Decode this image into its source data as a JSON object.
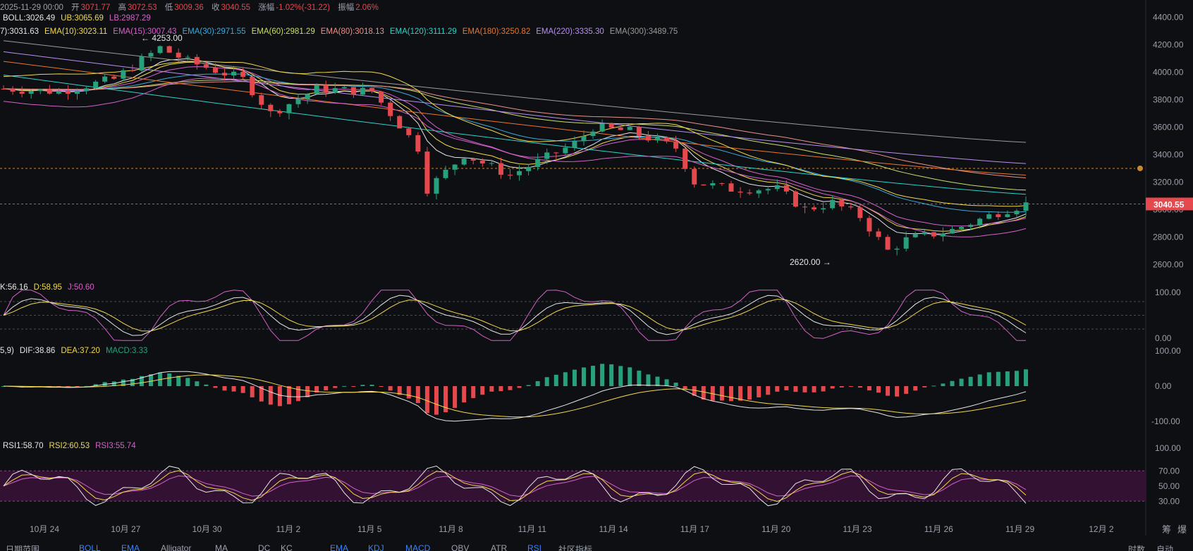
{
  "header": {
    "date": "2025-11-29 00:00",
    "open_label": "开",
    "open": "3071.77",
    "high_label": "高",
    "high": "3072.53",
    "low_label": "低",
    "low": "3009.36",
    "close_label": "收",
    "close": "3040.55",
    "change_label": "涨幅",
    "change": "-1.02%(-31.22)",
    "amp_label": "振幅",
    "amp": "2.06%"
  },
  "boll_legend": [
    {
      "text": "BOLL:3026.49",
      "color": "#e6e6e6"
    },
    {
      "text": "UB:3065.69",
      "color": "#f2d94e"
    },
    {
      "text": "LB:2987.29",
      "color": "#d462c9"
    }
  ],
  "ema_legend": [
    {
      "text": "7):3031.63",
      "color": "#e6e6e6"
    },
    {
      "text": "EMA(10):3023.11",
      "color": "#f2d94e"
    },
    {
      "text": "EMA(15):3007.43",
      "color": "#d462c9"
    },
    {
      "text": "EMA(30):2971.55",
      "color": "#3fa9d9"
    },
    {
      "text": "EMA(60):2981.29",
      "color": "#c9de6b"
    },
    {
      "text": "EMA(80):3018.13",
      "color": "#e8928a"
    },
    {
      "text": "EMA(120):3111.29",
      "color": "#2ed3c9"
    },
    {
      "text": "EMA(180):3250.82",
      "color": "#e8772e"
    },
    {
      "text": "EMA(220):3335.30",
      "color": "#b98ef0"
    },
    {
      "text": "EMA(300):3489.75",
      "color": "#9a9a9a"
    }
  ],
  "kdj_legend": [
    {
      "text": "K:56.16",
      "color": "#e6e6e6"
    },
    {
      "text": "D:58.95",
      "color": "#f2d94e"
    },
    {
      "text": "J:50.60",
      "color": "#d462c9"
    }
  ],
  "macd_legend": [
    {
      "text": "5,9)",
      "color": "#e6e6e6"
    },
    {
      "text": "DIF:38.86",
      "color": "#e6e6e6"
    },
    {
      "text": "DEA:37.20",
      "color": "#f2d94e"
    },
    {
      "text": "MACD:3.33",
      "color": "#26a17b"
    }
  ],
  "rsi_legend": [
    {
      "text": "RSI1:58.70",
      "color": "#e6e6e6"
    },
    {
      "text": "RSI2:60.53",
      "color": "#f2d94e"
    },
    {
      "text": "RSI3:55.74",
      "color": "#d462c9"
    }
  ],
  "chart_data": {
    "type": "candlestick",
    "price_axis": {
      "ticks": [
        "4400.00",
        "4200.00",
        "4000.00",
        "3800.00",
        "3600.00",
        "3400.00",
        "3200.00",
        "3000.00",
        "2800.00",
        "2600.00"
      ],
      "range": [
        2550,
        4450
      ]
    },
    "last_price": "3040.55",
    "dashed_level": 3300,
    "high_annotation": "4253.00",
    "low_annotation": "2620.00",
    "x_ticks": [
      "10月 24",
      "10月 27",
      "10月 30",
      "11月 2",
      "11月 5",
      "11月 8",
      "11月 11",
      "11月 14",
      "11月 17",
      "11月 20",
      "11月 23",
      "11月 26",
      "11月 29",
      "12月 2"
    ],
    "kdj_axis": [
      "100.00",
      "0.00"
    ],
    "macd_axis": [
      "100.00",
      "0.00",
      "-100.00"
    ],
    "rsi_axis": [
      "100.00",
      "70.00",
      "50.00",
      "30.00"
    ]
  },
  "footer": {
    "items": [
      "日期范围",
      "BOLL",
      "EMA",
      "Alligator",
      "MA",
      "DC",
      "KC",
      "EMA",
      "KDJ",
      "MACD",
      "OBV",
      "ATR",
      "RSI",
      "社区指标"
    ],
    "right": [
      "时数",
      "自动"
    ],
    "corner": [
      "筹",
      "爆"
    ]
  },
  "colors": {
    "up": "#26a17b",
    "down": "#e5484d",
    "bg": "#0e0f13"
  }
}
